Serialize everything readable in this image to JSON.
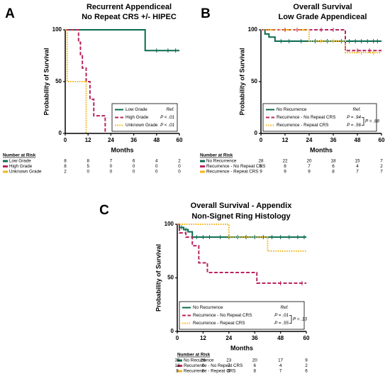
{
  "chart_data": [
    {
      "type": "km",
      "panel": "A",
      "title": [
        "Recurrent Appendiceal",
        "No Repeat CRS +/- HIPEC"
      ],
      "xlabel": "Months",
      "ylabel": "Probability of Survival",
      "xlim": [
        0,
        60
      ],
      "ylim": [
        0,
        100
      ],
      "xticks": [
        0,
        12,
        24,
        36,
        48,
        60
      ],
      "yticks": [
        0,
        50,
        100
      ],
      "legend": "lower right",
      "series": [
        {
          "name": "Low Grade",
          "color": "#0b6b4f",
          "dash": "solid",
          "annotation": "Ref.",
          "x": [
            0,
            42,
            60
          ],
          "values": [
            100,
            80,
            80
          ],
          "censored": [
            48,
            54,
            58
          ]
        },
        {
          "name": "High Grade",
          "color": "#b8255f",
          "dash": "dashed",
          "annotation": "P < .01",
          "x": [
            0,
            7,
            8,
            9,
            11,
            13,
            15,
            21
          ],
          "values": [
            100,
            88,
            75,
            63,
            50,
            33,
            17,
            0
          ],
          "censored": []
        },
        {
          "name": "Unknown Grade",
          "color": "#f2b41c",
          "dash": "dotted",
          "annotation": "P < .01",
          "x": [
            0,
            1,
            11
          ],
          "values": [
            100,
            50,
            0
          ],
          "censored": []
        }
      ],
      "risk_table": {
        "title": "Number at Risk",
        "rows": [
          {
            "label": "Low Grade",
            "values": [
              8,
              8,
              7,
              6,
              4,
              2
            ]
          },
          {
            "label": "High Grade",
            "values": [
              8,
              5,
              0,
              0,
              0,
              0
            ]
          },
          {
            "label": "Unknown Grade",
            "values": [
              2,
              0,
              0,
              0,
              0,
              0
            ]
          }
        ]
      }
    },
    {
      "type": "km",
      "panel": "B",
      "title": [
        "Overall Survival",
        "Low Grade Appendiceal"
      ],
      "xlabel": "Months",
      "ylabel": "Probability of Survival",
      "xlim": [
        0,
        60
      ],
      "ylim": [
        0,
        100
      ],
      "xticks": [
        0,
        12,
        24,
        36,
        48,
        60
      ],
      "yticks": [
        0,
        50,
        100
      ],
      "legend": "lower left",
      "comparison": "P = .88",
      "series": [
        {
          "name": "No Recurrence",
          "color": "#0b6b4f",
          "dash": "solid",
          "annotation": "Ref.",
          "x": [
            0,
            2,
            4,
            7,
            60
          ],
          "values": [
            100,
            96,
            93,
            89,
            89
          ],
          "censored": [
            10,
            14,
            20,
            27,
            30,
            33,
            36,
            40,
            44,
            47,
            50,
            53,
            56,
            58
          ]
        },
        {
          "name": "Recurrence - No Repeat CRS",
          "color": "#b8255f",
          "dash": "dashed",
          "annotation": "P = .94",
          "x": [
            0,
            42,
            60
          ],
          "values": [
            100,
            80,
            80
          ],
          "censored": [
            12,
            18,
            30,
            36,
            48,
            54
          ]
        },
        {
          "name": "Recurrence - Repeat CRS",
          "color": "#f2b41c",
          "dash": "dotted",
          "annotation": "P = .56",
          "x": [
            0,
            24,
            42,
            60
          ],
          "values": [
            100,
            89,
            78,
            78
          ],
          "censored": [
            30,
            36,
            50,
            56
          ]
        }
      ],
      "risk_table": {
        "title": "Number at Risk",
        "rows": [
          {
            "label": "No Recurrence",
            "values": [
              28,
              22,
              20,
              18,
              15,
              7
            ]
          },
          {
            "label": "Recurrence - No Repeat CRS",
            "values": [
              8,
              8,
              7,
              6,
              4,
              2
            ]
          },
          {
            "label": "Recurrence - Repeat CRS",
            "values": [
              9,
              9,
              9,
              8,
              7,
              7
            ]
          }
        ]
      }
    },
    {
      "type": "km",
      "panel": "C",
      "title": [
        "Overall Survival - Appendix",
        "Non-Signet Ring Histology"
      ],
      "xlabel": "Months",
      "ylabel": "Probability of Survival",
      "xlim": [
        0,
        60
      ],
      "ylim": [
        0,
        100
      ],
      "xticks": [
        0,
        12,
        24,
        36,
        48,
        60
      ],
      "yticks": [
        0,
        50,
        100
      ],
      "legend": "lower left",
      "comparison": "P = .13",
      "series": [
        {
          "name": "No Recurrence",
          "color": "#0b6b4f",
          "dash": "solid",
          "annotation": "Ref.",
          "x": [
            0,
            1,
            3,
            5,
            7,
            60
          ],
          "values": [
            100,
            97,
            95,
            93,
            88,
            88
          ],
          "censored": [
            2,
            4,
            9,
            12,
            15,
            20,
            24,
            28,
            32,
            36,
            40,
            44,
            48,
            52,
            56,
            59
          ]
        },
        {
          "name": "Recurrence - No Repeat CRS",
          "color": "#b8255f",
          "dash": "dashed",
          "annotation": "P = .01",
          "x": [
            0,
            1,
            4,
            7,
            10,
            14,
            37,
            60
          ],
          "values": [
            100,
            92,
            88,
            80,
            64,
            55,
            45,
            45
          ],
          "censored": [
            48,
            58
          ]
        },
        {
          "name": "Recurrence - Repeat CRS",
          "color": "#f2b41c",
          "dash": "dotted",
          "annotation": "P = .55",
          "x": [
            0,
            24,
            42,
            60
          ],
          "values": [
            100,
            88,
            75,
            75
          ],
          "censored": []
        }
      ],
      "risk_table": {
        "title": "Number at Risk",
        "rows": [
          {
            "label": "No Recurrence",
            "values": [
              35,
              26,
              23,
              20,
              17,
              9
            ]
          },
          {
            "label": "Recurrence - No Repeat CRS",
            "values": [
              12,
              9,
              7,
              6,
              4,
              2
            ]
          },
          {
            "label": "Recurrence - Repeat CRS",
            "values": [
              8,
              8,
              8,
              8,
              7,
              6
            ]
          }
        ]
      }
    }
  ]
}
